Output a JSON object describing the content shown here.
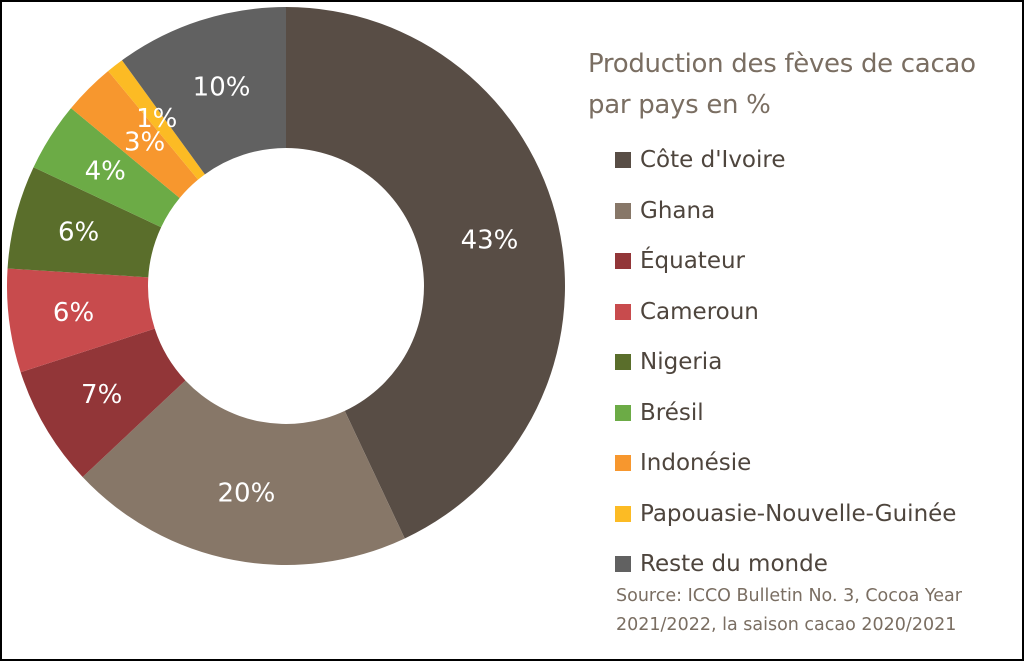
{
  "chart_data": {
    "type": "pie",
    "variant": "donut",
    "title": "Production des fèves de cacao par pays en %",
    "categories": [
      "Côte d'Ivoire",
      "Ghana",
      "Équateur",
      "Cameroun",
      "Nigeria",
      "Brésil",
      "Indonésie",
      "Papouasie-Nouvelle-Guinée",
      "Reste du monde"
    ],
    "values": [
      43,
      20,
      7,
      6,
      6,
      4,
      3,
      1,
      10
    ],
    "value_labels": [
      "43%",
      "20%",
      "7%",
      "6%",
      "6%",
      "4%",
      "3%",
      "1%",
      "10%"
    ],
    "colors": [
      "#584d45",
      "#877768",
      "#923638",
      "#c84b4d",
      "#5a6e2b",
      "#6cab46",
      "#f7972e",
      "#fcbb24",
      "#616161"
    ],
    "legend_position": "right",
    "start_angle": "12 o'clock, clockwise",
    "source": "Source: ICCO Bulletin No. 3, Cocoa Year 2021/2022, la saison cacao 2020/2021"
  },
  "title": {
    "line1": "Production des fèves de cacao",
    "line2": "par pays en %"
  },
  "legend": [
    {
      "label": "Côte d'Ivoire",
      "color": "#584d45"
    },
    {
      "label": "Ghana",
      "color": "#877768"
    },
    {
      "label": "Équateur",
      "color": "#923638"
    },
    {
      "label": "Cameroun",
      "color": "#c84b4d"
    },
    {
      "label": "Nigeria",
      "color": "#5a6e2b"
    },
    {
      "label": "Brésil",
      "color": "#6cab46"
    },
    {
      "label": "Indonésie",
      "color": "#f7972e"
    },
    {
      "label": "Papouasie-Nouvelle-Guinée",
      "color": "#fcbb24"
    },
    {
      "label": "Reste du monde",
      "color": "#616161"
    }
  ],
  "source": {
    "line1": "Source: ICCO Bulletin No. 3, Cocoa Year",
    "line2": "2021/2022, la saison cacao 2020/2021"
  }
}
